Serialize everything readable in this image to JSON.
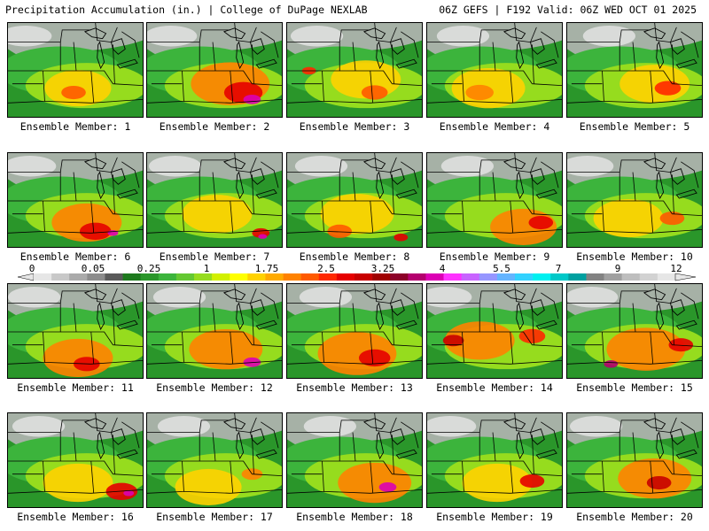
{
  "header": {
    "left": "Precipitation Accumulation (in.) | College of DuPage NEXLAB",
    "right": "06Z GEFS | F192 Valid: 06Z WED OCT 01 2025"
  },
  "colorbar": {
    "labels": [
      "0",
      "0.05",
      "0.25",
      "1",
      "1.75",
      "2.5",
      "3.25",
      "4",
      "5.5",
      "7",
      "9",
      "12"
    ],
    "colors": [
      "#e6e6e6",
      "#c8c8c8",
      "#aaaaaa",
      "#8c8c8c",
      "#5a5a5a",
      "#1e7a1e",
      "#2a962a",
      "#3cb43c",
      "#64c832",
      "#96dc1e",
      "#d2f000",
      "#ffff00",
      "#ffd200",
      "#ffaa00",
      "#ff8200",
      "#ff5a00",
      "#ff2800",
      "#e60000",
      "#c80000",
      "#a00000",
      "#8c0028",
      "#b4006e",
      "#dc00b4",
      "#ff32ff",
      "#c864ff",
      "#9696ff",
      "#64b4ff",
      "#32d2ff",
      "#00f0f0",
      "#00c8c8",
      "#00a0a0",
      "#828282",
      "#a0a0a0",
      "#bebebe",
      "#d2d2d2",
      "#e6e6e6"
    ]
  },
  "members": [
    {
      "label": "Ensemble Member: 1",
      "blobs": [
        {
          "c": "#ffd200",
          "x": 80,
          "y": 75,
          "r": 38
        },
        {
          "c": "#ff5a00",
          "x": 75,
          "y": 80,
          "r": 14
        }
      ]
    },
    {
      "label": "Ensemble Member: 2",
      "blobs": [
        {
          "c": "#ff8200",
          "x": 95,
          "y": 70,
          "r": 45
        },
        {
          "c": "#e60000",
          "x": 110,
          "y": 80,
          "r": 22
        },
        {
          "c": "#dc00b4",
          "x": 120,
          "y": 88,
          "r": 10
        }
      ]
    },
    {
      "label": "Ensemble Member: 3",
      "blobs": [
        {
          "c": "#ffd200",
          "x": 90,
          "y": 65,
          "r": 40
        },
        {
          "c": "#ff2800",
          "x": 25,
          "y": 55,
          "r": 8
        },
        {
          "c": "#ff5a00",
          "x": 100,
          "y": 80,
          "r": 15
        }
      ]
    },
    {
      "label": "Ensemble Member: 4",
      "blobs": [
        {
          "c": "#ffd200",
          "x": 70,
          "y": 75,
          "r": 42
        },
        {
          "c": "#ff8200",
          "x": 60,
          "y": 80,
          "r": 16
        }
      ]
    },
    {
      "label": "Ensemble Member: 5",
      "blobs": [
        {
          "c": "#ffd200",
          "x": 100,
          "y": 70,
          "r": 40
        },
        {
          "c": "#ff2800",
          "x": 115,
          "y": 75,
          "r": 15
        }
      ]
    },
    {
      "label": "Ensemble Member: 6",
      "blobs": [
        {
          "c": "#ff8200",
          "x": 90,
          "y": 80,
          "r": 40
        },
        {
          "c": "#e60000",
          "x": 100,
          "y": 90,
          "r": 18
        },
        {
          "c": "#dc00b4",
          "x": 120,
          "y": 92,
          "r": 6
        }
      ]
    },
    {
      "label": "Ensemble Member: 7",
      "blobs": [
        {
          "c": "#ffd200",
          "x": 80,
          "y": 70,
          "r": 40
        },
        {
          "c": "#e60000",
          "x": 130,
          "y": 92,
          "r": 10
        },
        {
          "c": "#dc00b4",
          "x": 132,
          "y": 96,
          "r": 5
        }
      ]
    },
    {
      "label": "Ensemble Member: 8",
      "blobs": [
        {
          "c": "#ffd200",
          "x": 80,
          "y": 70,
          "r": 42
        },
        {
          "c": "#ff5a00",
          "x": 60,
          "y": 90,
          "r": 14
        },
        {
          "c": "#e60000",
          "x": 130,
          "y": 97,
          "r": 8
        }
      ]
    },
    {
      "label": "Ensemble Member: 9",
      "blobs": [
        {
          "c": "#ff8200",
          "x": 110,
          "y": 85,
          "r": 38
        },
        {
          "c": "#e60000",
          "x": 130,
          "y": 80,
          "r": 14
        }
      ]
    },
    {
      "label": "Ensemble Member: 10",
      "blobs": [
        {
          "c": "#ffd200",
          "x": 70,
          "y": 75,
          "r": 40
        },
        {
          "c": "#ff5a00",
          "x": 120,
          "y": 75,
          "r": 14
        }
      ]
    },
    {
      "label": "Ensemble Member: 11",
      "blobs": [
        {
          "c": "#ff8200",
          "x": 80,
          "y": 85,
          "r": 40
        },
        {
          "c": "#e60000",
          "x": 90,
          "y": 92,
          "r": 15
        }
      ]
    },
    {
      "label": "Ensemble Member: 12",
      "blobs": [
        {
          "c": "#ff8200",
          "x": 90,
          "y": 75,
          "r": 42
        },
        {
          "c": "#dc00b4",
          "x": 120,
          "y": 90,
          "r": 10
        }
      ]
    },
    {
      "label": "Ensemble Member: 13",
      "blobs": [
        {
          "c": "#ff8200",
          "x": 80,
          "y": 80,
          "r": 45
        },
        {
          "c": "#e60000",
          "x": 100,
          "y": 85,
          "r": 18
        }
      ]
    },
    {
      "label": "Ensemble Member: 14",
      "blobs": [
        {
          "c": "#ff8200",
          "x": 60,
          "y": 65,
          "r": 40
        },
        {
          "c": "#c80000",
          "x": 30,
          "y": 65,
          "r": 12
        },
        {
          "c": "#ff2800",
          "x": 120,
          "y": 60,
          "r": 15
        }
      ]
    },
    {
      "label": "Ensemble Member: 15",
      "blobs": [
        {
          "c": "#ff8200",
          "x": 90,
          "y": 75,
          "r": 45
        },
        {
          "c": "#b4006e",
          "x": 50,
          "y": 92,
          "r": 8
        },
        {
          "c": "#e60000",
          "x": 130,
          "y": 70,
          "r": 14
        }
      ]
    },
    {
      "label": "Ensemble Member: 16",
      "blobs": [
        {
          "c": "#ffd200",
          "x": 80,
          "y": 80,
          "r": 40
        },
        {
          "c": "#e60000",
          "x": 130,
          "y": 90,
          "r": 18
        },
        {
          "c": "#dc00b4",
          "x": 138,
          "y": 92,
          "r": 6
        }
      ]
    },
    {
      "label": "Ensemble Member: 17",
      "blobs": [
        {
          "c": "#ffd200",
          "x": 70,
          "y": 85,
          "r": 38
        },
        {
          "c": "#ff8200",
          "x": 120,
          "y": 70,
          "r": 12
        }
      ]
    },
    {
      "label": "Ensemble Member: 18",
      "blobs": [
        {
          "c": "#ff8200",
          "x": 100,
          "y": 80,
          "r": 42
        },
        {
          "c": "#dc00b4",
          "x": 115,
          "y": 85,
          "r": 10
        }
      ]
    },
    {
      "label": "Ensemble Member: 19",
      "blobs": [
        {
          "c": "#ffd200",
          "x": 80,
          "y": 80,
          "r": 40
        },
        {
          "c": "#e60000",
          "x": 120,
          "y": 78,
          "r": 14
        }
      ]
    },
    {
      "label": "Ensemble Member: 20",
      "blobs": [
        {
          "c": "#ff8200",
          "x": 100,
          "y": 75,
          "r": 42
        },
        {
          "c": "#c80000",
          "x": 105,
          "y": 80,
          "r": 14
        }
      ]
    }
  ]
}
